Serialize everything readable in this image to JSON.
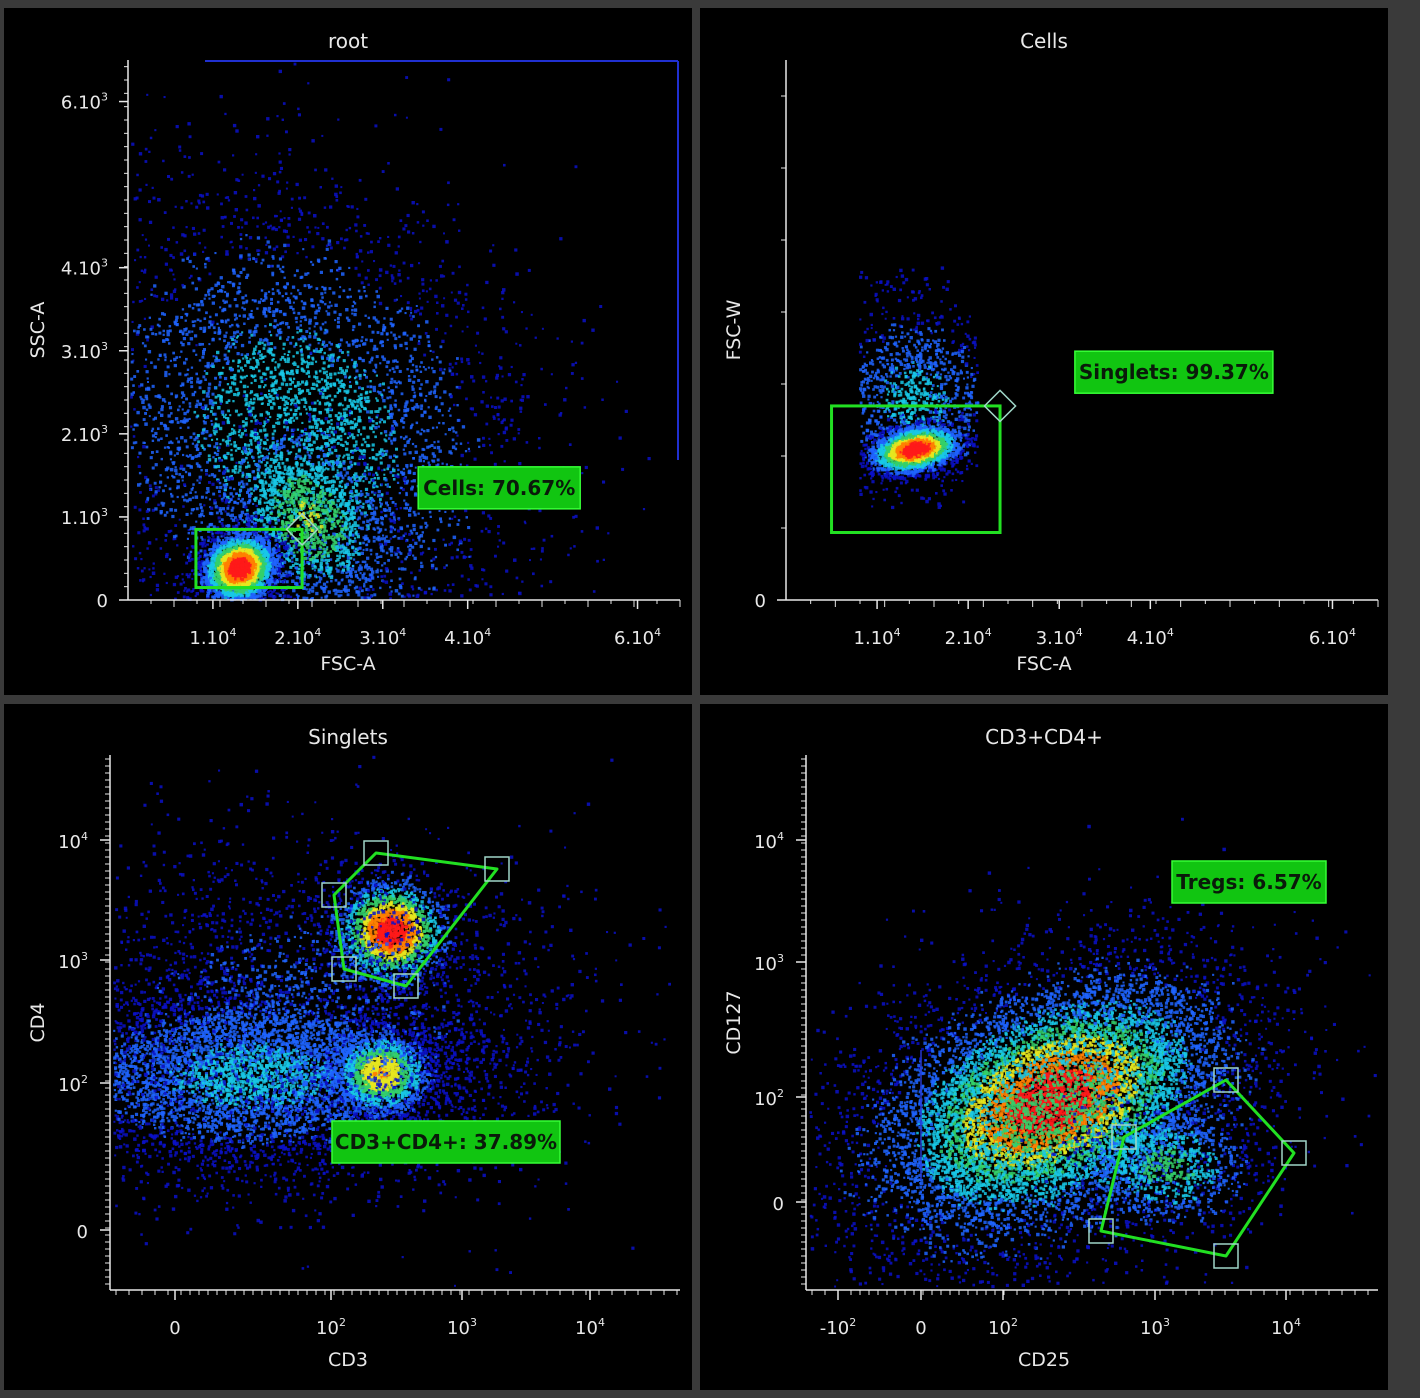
{
  "colors": {
    "background": "#000000",
    "frame": "#3a3a3a",
    "axis": "#e8e8e8",
    "gate": "#22e022",
    "gate_label_bg": "#11c511",
    "gate_label_border": "#36ff36",
    "handle": "#9fd6c8",
    "density_scale": [
      "#0a10c8",
      "#1e64ff",
      "#18c8e6",
      "#34d06a",
      "#e6e61e",
      "#ff8000",
      "#ff1a1a"
    ]
  },
  "chart_data": [
    {
      "type": "scatter",
      "subtype": "density",
      "title": "root",
      "xlabel": "FSC-A",
      "ylabel": "SSC-A",
      "xlim": [
        0,
        65000
      ],
      "ylim": [
        0,
        6500
      ],
      "x_ticks": [
        {
          "value": 10000,
          "base": "1.10",
          "exp": "4"
        },
        {
          "value": 20000,
          "base": "2.10",
          "exp": "4"
        },
        {
          "value": 30000,
          "base": "3.10",
          "exp": "4"
        },
        {
          "value": 40000,
          "base": "4.10",
          "exp": "4"
        },
        {
          "value": 60000,
          "base": "6.10",
          "exp": "4"
        }
      ],
      "y_ticks": [
        {
          "value": 0,
          "base": "0",
          "exp": ""
        },
        {
          "value": 1000,
          "base": "1.10",
          "exp": "3"
        },
        {
          "value": 2000,
          "base": "2.10",
          "exp": "3"
        },
        {
          "value": 3000,
          "base": "3.10",
          "exp": "3"
        },
        {
          "value": 4000,
          "base": "4.10",
          "exp": "3"
        },
        {
          "value": 6000,
          "base": "6.10",
          "exp": "3"
        }
      ],
      "populations": [
        {
          "x": 20000,
          "y": 2000,
          "sx": 12000,
          "sy": 1500,
          "weight": 0.55,
          "level": 0.35
        },
        {
          "x": 21000,
          "y": 1000,
          "sx": 4500,
          "sy": 600,
          "weight": 0.15,
          "level": 0.55
        },
        {
          "x": 13000,
          "y": 400,
          "sx": 2200,
          "sy": 200,
          "weight": 0.3,
          "level": 1.0
        }
      ],
      "gate": {
        "shape": "rectangle",
        "name": "Cells",
        "label": "Cells: 70.67%",
        "x": [
          8000,
          20500
        ],
        "y": [
          150,
          850
        ]
      },
      "gate_label_pos": {
        "x": 39000,
        "y": 1350
      }
    },
    {
      "type": "scatter",
      "subtype": "density",
      "title": "Cells",
      "xlabel": "FSC-A",
      "ylabel": "FSC-W",
      "xlim": [
        0,
        65000
      ],
      "ylim": [
        0,
        64000
      ],
      "x_ticks": [
        {
          "value": 10000,
          "base": "1.10",
          "exp": "4"
        },
        {
          "value": 20000,
          "base": "2.10",
          "exp": "4"
        },
        {
          "value": 30000,
          "base": "3.10",
          "exp": "4"
        },
        {
          "value": 40000,
          "base": "4.10",
          "exp": "4"
        },
        {
          "value": 60000,
          "base": "6.10",
          "exp": "4"
        }
      ],
      "y_ticks": [
        {
          "value": 0,
          "base": "0",
          "exp": ""
        }
      ],
      "populations": [
        {
          "x": 14000,
          "y": 24000,
          "sx": 5000,
          "sy": 6000,
          "weight": 0.4,
          "level": 0.3
        },
        {
          "x": 14000,
          "y": 18000,
          "sx": 2500,
          "sy": 1300,
          "weight": 0.6,
          "level": 1.0
        }
      ],
      "gate": {
        "shape": "rectangle",
        "name": "Singlets",
        "label": "Singlets: 99.37%",
        "x": [
          5000,
          23500
        ],
        "y": [
          8000,
          23000
        ]
      },
      "gate_label_pos": {
        "x": 36000,
        "y": 27000
      }
    },
    {
      "type": "scatter",
      "subtype": "density",
      "title": "Singlets",
      "xlabel": "CD3",
      "ylabel": "CD4",
      "x_ticks": [
        {
          "base": "0",
          "exp": ""
        },
        {
          "base": "10",
          "exp": "2"
        },
        {
          "base": "10",
          "exp": "3"
        },
        {
          "base": "10",
          "exp": "4"
        }
      ],
      "y_ticks": [
        {
          "base": "0",
          "exp": ""
        },
        {
          "base": "10",
          "exp": "2"
        },
        {
          "base": "10",
          "exp": "3"
        },
        {
          "base": "10",
          "exp": "4"
        }
      ],
      "gate": {
        "shape": "polygon",
        "name": "CD3+CD4+",
        "label": "CD3+CD4+: 37.89%"
      }
    },
    {
      "type": "scatter",
      "subtype": "density",
      "title": "CD3+CD4+",
      "xlabel": "CD25",
      "ylabel": "CD127",
      "x_ticks": [
        {
          "base": "-10",
          "exp": "2"
        },
        {
          "base": "0",
          "exp": ""
        },
        {
          "base": "10",
          "exp": "2"
        },
        {
          "base": "10",
          "exp": "3"
        },
        {
          "base": "10",
          "exp": "4"
        }
      ],
      "y_ticks": [
        {
          "base": "0",
          "exp": ""
        },
        {
          "base": "10",
          "exp": "2"
        },
        {
          "base": "10",
          "exp": "3"
        },
        {
          "base": "10",
          "exp": "4"
        }
      ],
      "gate": {
        "shape": "polygon",
        "name": "Tregs",
        "label": "Tregs: 6.57%"
      }
    }
  ]
}
